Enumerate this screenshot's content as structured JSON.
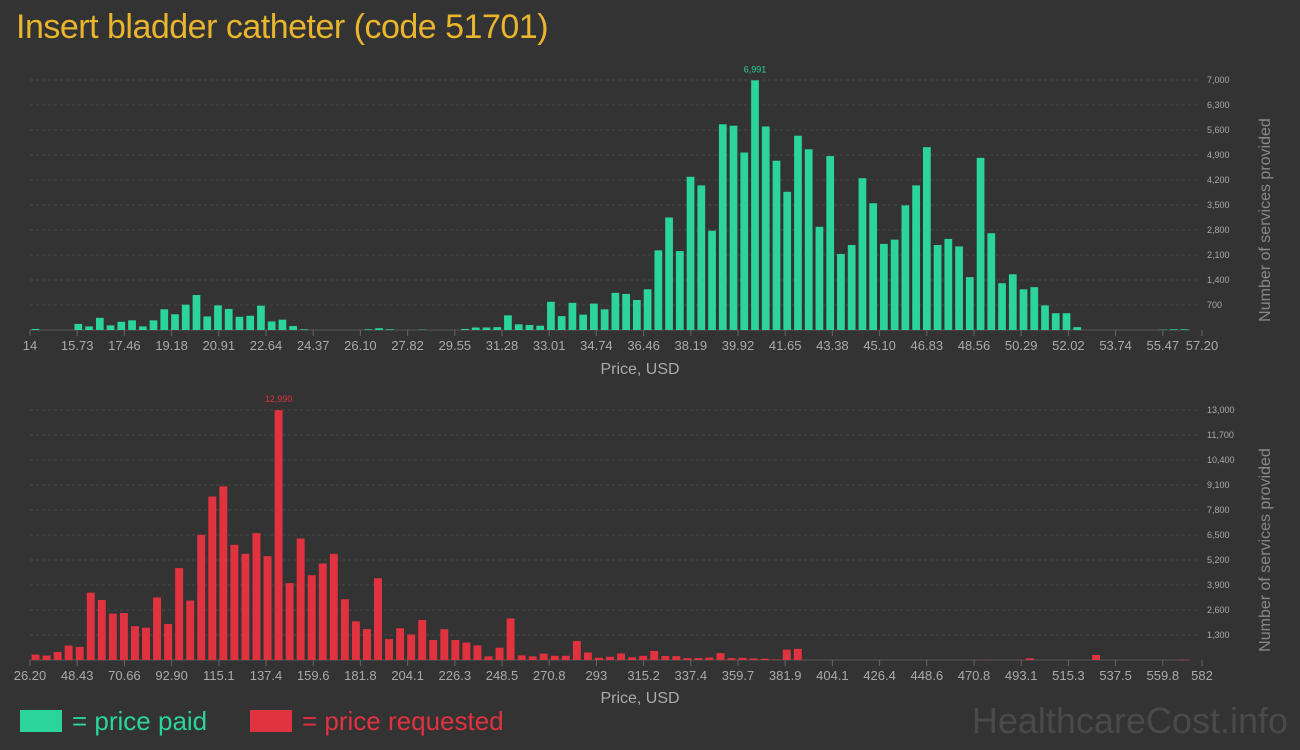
{
  "title": "Insert bladder catheter (code 51701)",
  "watermark": "HealthcareCost.info",
  "legend": {
    "paid_label": "= price paid",
    "requested_label": "= price requested"
  },
  "colors": {
    "paid": "#2ad49a",
    "requested": "#e0323f",
    "title": "#e8b52d",
    "background": "#333333"
  },
  "chart_data": [
    {
      "type": "bar",
      "series_name": "price paid",
      "xlabel": "Price, USD",
      "ylabel": "Number of services provided",
      "ylim": [
        0,
        7000
      ],
      "yticks": [
        "700",
        "1,400",
        "2,100",
        "2,800",
        "3,500",
        "4,200",
        "4,900",
        "5,600",
        "6,300",
        "7,000"
      ],
      "xticks": [
        "14",
        "15.73",
        "17.46",
        "19.18",
        "20.91",
        "22.64",
        "24.37",
        "26.10",
        "27.82",
        "29.55",
        "31.28",
        "33.01",
        "34.74",
        "36.46",
        "38.19",
        "39.92",
        "41.65",
        "43.38",
        "45.10",
        "46.83",
        "48.56",
        "50.29",
        "52.02",
        "53.74",
        "55.47",
        "57.20"
      ],
      "peak_label": "6,991",
      "values": [
        30,
        0,
        0,
        0,
        170,
        100,
        340,
        130,
        230,
        270,
        100,
        270,
        580,
        440,
        710,
        980,
        380,
        690,
        590,
        370,
        400,
        680,
        240,
        290,
        110,
        20,
        0,
        0,
        0,
        0,
        0,
        20,
        50,
        20,
        0,
        0,
        10,
        0,
        0,
        0,
        30,
        70,
        70,
        80,
        410,
        160,
        140,
        120,
        790,
        390,
        760,
        430,
        740,
        580,
        1040,
        1010,
        840,
        1140,
        2230,
        3150,
        2210,
        4290,
        4050,
        2780,
        5760,
        5720,
        4970,
        6991,
        5700,
        4740,
        3870,
        5440,
        5060,
        2890,
        4870,
        2130,
        2380,
        4250,
        3550,
        2410,
        2530,
        3490,
        4050,
        5120,
        2380,
        2550,
        2340,
        1480,
        4820,
        2710,
        1310,
        1560,
        1140,
        1200,
        690,
        470,
        470,
        80,
        0,
        0,
        0,
        0,
        0,
        0,
        0,
        10,
        20,
        20
      ]
    },
    {
      "type": "bar",
      "series_name": "price requested",
      "xlabel": "Price, USD",
      "ylabel": "Number of services provided",
      "ylim": [
        0,
        13000
      ],
      "yticks": [
        "1,300",
        "2,600",
        "3,900",
        "5,200",
        "6,500",
        "7,800",
        "9,100",
        "10,400",
        "11,700",
        "13,000"
      ],
      "xticks": [
        "26.20",
        "48.43",
        "70.66",
        "92.90",
        "115.1",
        "137.4",
        "159.6",
        "181.8",
        "204.1",
        "226.3",
        "248.5",
        "270.8",
        "293",
        "315.2",
        "337.4",
        "359.7",
        "381.9",
        "404.1",
        "426.4",
        "448.6",
        "470.8",
        "493.1",
        "515.3",
        "537.5",
        "559.8",
        "582"
      ],
      "peak_label": "12,990",
      "values": [
        280,
        230,
        420,
        750,
        680,
        3500,
        3120,
        2410,
        2440,
        1760,
        1680,
        3250,
        1870,
        4780,
        3090,
        6510,
        8500,
        9030,
        5990,
        5520,
        6600,
        5400,
        12990,
        4000,
        6320,
        4410,
        5020,
        5520,
        3160,
        2010,
        1610,
        4250,
        1090,
        1650,
        1330,
        2080,
        1040,
        1600,
        1040,
        910,
        760,
        190,
        640,
        2160,
        240,
        190,
        330,
        220,
        220,
        990,
        390,
        120,
        170,
        340,
        140,
        220,
        470,
        210,
        200,
        100,
        100,
        130,
        360,
        100,
        110,
        80,
        70,
        30,
        540,
        580,
        0,
        0,
        0,
        0,
        0,
        0,
        0,
        0,
        0,
        0,
        0,
        0,
        0,
        0,
        0,
        0,
        10,
        0,
        0,
        10,
        90,
        0,
        0,
        0,
        0,
        0,
        260,
        0,
        0,
        0,
        0,
        0,
        0,
        0,
        20
      ]
    }
  ]
}
